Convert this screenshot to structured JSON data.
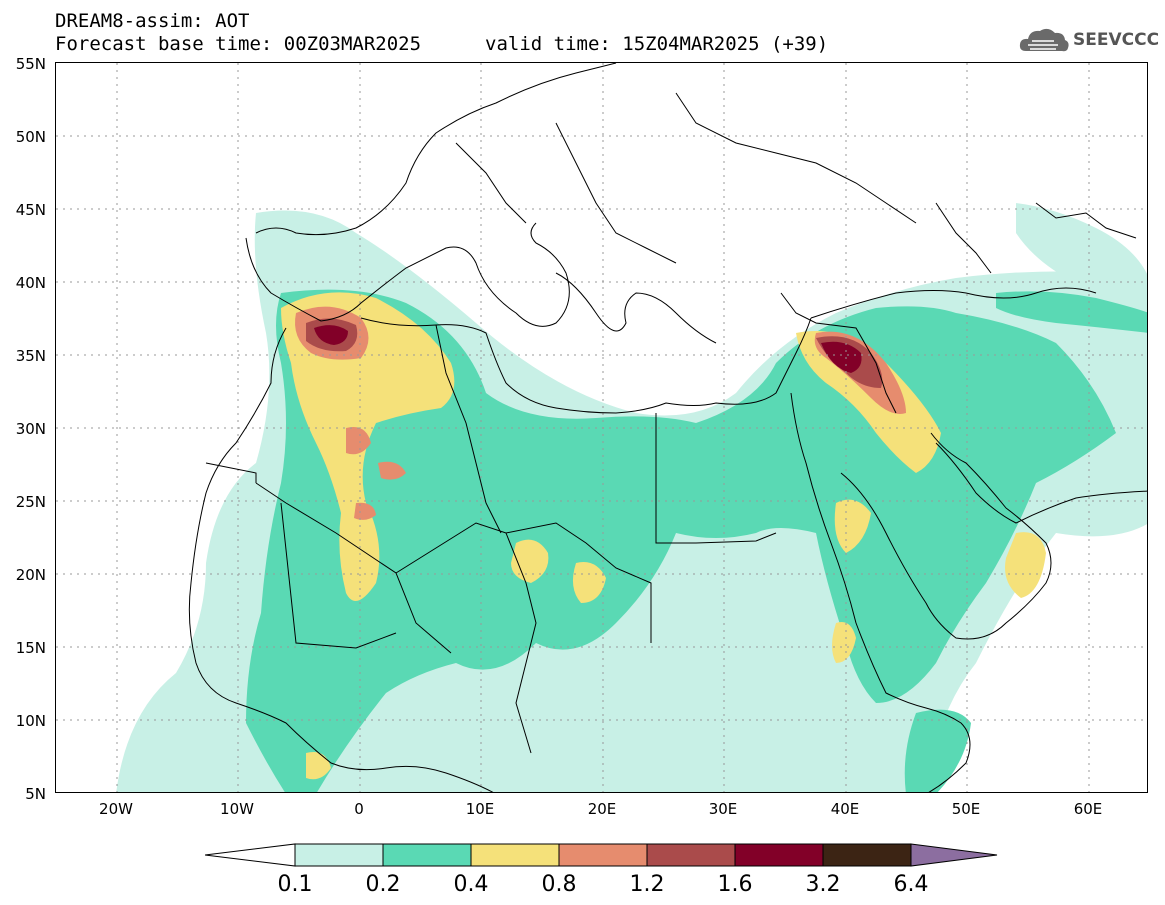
{
  "title": {
    "line1": "DREAM8-assim: AOT",
    "line2": "Forecast base time: 00Z03MAR2025",
    "line3": "valid time: 15Z04MAR2025 (+39)"
  },
  "logo": {
    "text": "SEEVCCC",
    "icon": "cloud-icon"
  },
  "map": {
    "variable": "AOT",
    "lat_range": [
      5,
      55
    ],
    "lon_range": [
      -25,
      65
    ],
    "y_ticks": [
      "55N",
      "50N",
      "45N",
      "40N",
      "35N",
      "30N",
      "25N",
      "20N",
      "15N",
      "10N",
      "5N"
    ],
    "x_ticks": [
      "20W",
      "10W",
      "0",
      "10E",
      "20E",
      "30E",
      "40E",
      "50E",
      "60E"
    ]
  },
  "colorbar": {
    "labels": [
      "0.1",
      "0.2",
      "0.4",
      "0.8",
      "1.2",
      "1.6",
      "3.2",
      "6.4"
    ],
    "colors": [
      "#ffffff",
      "#c8f0e6",
      "#5ad9b4",
      "#f5e17a",
      "#e68c6e",
      "#aa4b4b",
      "#820028",
      "#3c2414",
      "#8c6ea0"
    ]
  }
}
